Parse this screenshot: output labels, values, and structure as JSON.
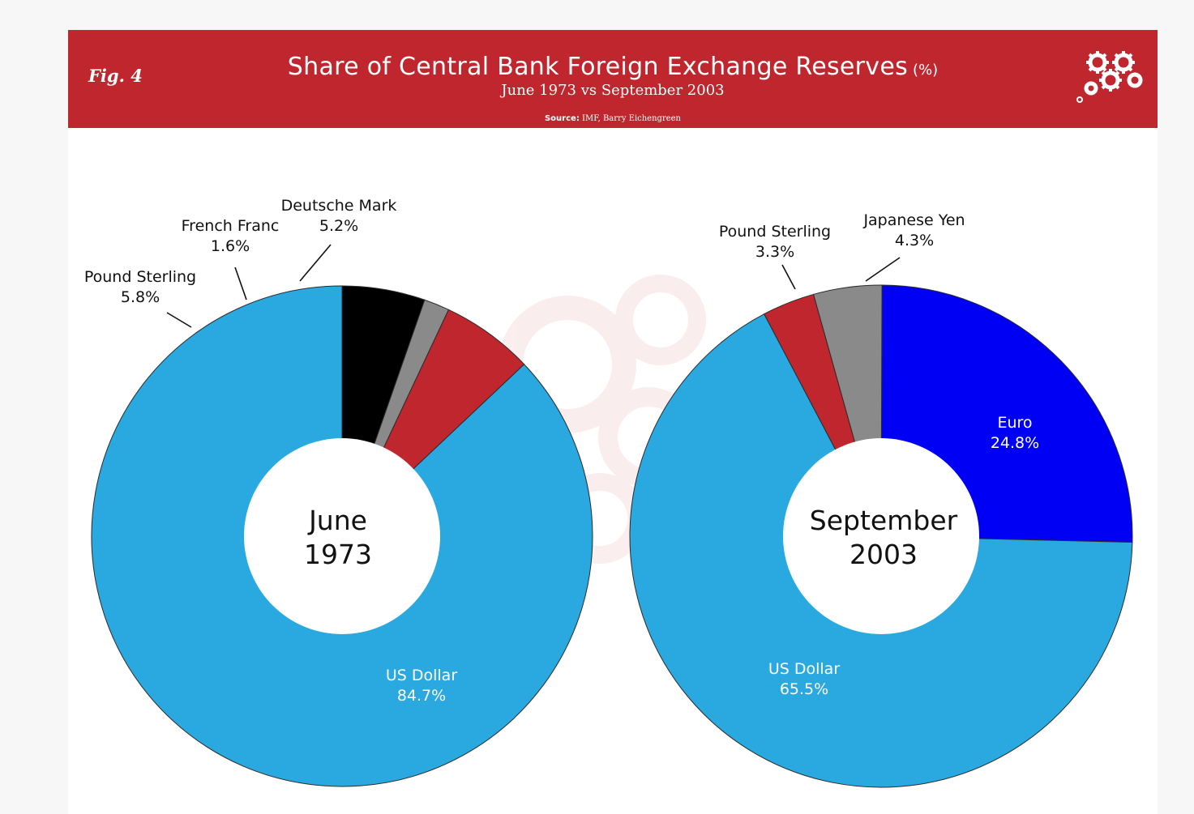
{
  "header": {
    "fig_label": "Fig. 4",
    "title": "Share of Central Bank Foreign Exchange Reserves",
    "title_unit": "(%)",
    "subtitle": "June 1973 vs September 2003",
    "source_key": "Source:",
    "source_value": "IMF, Barry Eichengreen",
    "logo_icon": "gears-icon",
    "banner_color": "#c0262d"
  },
  "chart_data": [
    {
      "type": "pie",
      "donut": true,
      "center_label": [
        "June",
        "1973"
      ],
      "slices": [
        {
          "label": "US Dollar",
          "value": 84.7,
          "value_text": "84.7%",
          "color": "#29a9e0",
          "label_inside": true
        },
        {
          "label": "Pound Sterling",
          "value": 5.8,
          "value_text": "5.8%",
          "color": "#c0262d",
          "label_inside": false
        },
        {
          "label": "French Franc",
          "value": 1.6,
          "value_text": "1.6%",
          "color": "#8a8a8a",
          "label_inside": false
        },
        {
          "label": "Deutsche Mark",
          "value": 5.2,
          "value_text": "5.2%",
          "color": "#000000",
          "label_inside": false
        }
      ]
    },
    {
      "type": "pie",
      "donut": true,
      "center_label": [
        "September",
        "2003"
      ],
      "slices": [
        {
          "label": "Euro",
          "value": 24.8,
          "value_text": "24.8%",
          "color": "#0000f5",
          "label_inside": true
        },
        {
          "label": "US Dollar",
          "value": 65.5,
          "value_text": "65.5%",
          "color": "#29a9e0",
          "label_inside": true
        },
        {
          "label": "Pound Sterling",
          "value": 3.3,
          "value_text": "3.3%",
          "color": "#c0262d",
          "label_inside": false
        },
        {
          "label": "Japanese Yen",
          "value": 4.3,
          "value_text": "4.3%",
          "color": "#8a8a8a",
          "label_inside": false
        }
      ]
    }
  ]
}
